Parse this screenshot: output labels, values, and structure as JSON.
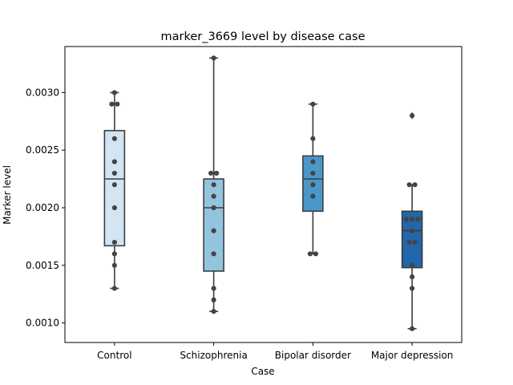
{
  "chart_data": {
    "type": "box",
    "title": "marker_3669 level by disease case",
    "xlabel": "Case",
    "ylabel": "Marker level",
    "categories": [
      "Control",
      "Schizophrenia",
      "Bipolar disorder",
      "Major depression"
    ],
    "ylim": [
      0.00083,
      0.0034
    ],
    "yticks": [
      0.001,
      0.0015,
      0.002,
      0.0025,
      0.003
    ],
    "ytick_labels": [
      "0.0010",
      "0.0015",
      "0.0020",
      "0.0025",
      "0.0030"
    ],
    "grid": false,
    "legend": "none",
    "colors": [
      "#d3e4f3",
      "#93c4de",
      "#4a98c9",
      "#2266ac"
    ],
    "boxes": [
      {
        "q1": 0.00167,
        "median": 0.00225,
        "q3": 0.00267,
        "whisker_low": 0.0013,
        "whisker_high": 0.003,
        "outliers": []
      },
      {
        "q1": 0.00145,
        "median": 0.002,
        "q3": 0.00225,
        "whisker_low": 0.0011,
        "whisker_high": 0.0033,
        "outliers": []
      },
      {
        "q1": 0.00197,
        "median": 0.00225,
        "q3": 0.00245,
        "whisker_low": 0.0016,
        "whisker_high": 0.0029,
        "outliers": []
      },
      {
        "q1": 0.00148,
        "median": 0.0018,
        "q3": 0.00197,
        "whisker_low": 0.00095,
        "whisker_high": 0.0022,
        "outliers": [
          0.0028
        ]
      }
    ],
    "points": [
      [
        0.003,
        0.0029,
        0.0029,
        0.0026,
        0.0024,
        0.0023,
        0.0022,
        0.002,
        0.0017,
        0.0016,
        0.0015,
        0.0013
      ],
      [
        0.0033,
        0.0023,
        0.0023,
        0.0022,
        0.0021,
        0.002,
        0.0018,
        0.0016,
        0.0013,
        0.0012,
        0.0011
      ],
      [
        0.0029,
        0.0026,
        0.0024,
        0.0023,
        0.0022,
        0.0021,
        0.0016,
        0.0016
      ],
      [
        0.0028,
        0.0022,
        0.0022,
        0.0019,
        0.0019,
        0.0019,
        0.0018,
        0.0017,
        0.0017,
        0.0015,
        0.0014,
        0.0013,
        0.00095
      ]
    ]
  }
}
